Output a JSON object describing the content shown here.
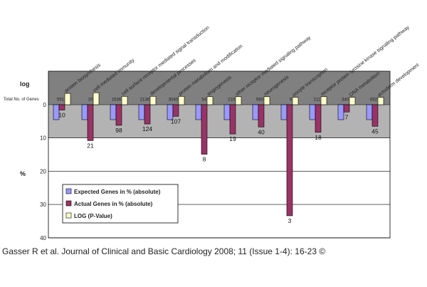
{
  "chart_data": {
    "type": "bar",
    "title": "",
    "ylabel": "%",
    "log_label": "log",
    "total_label": "Total No. of Genes",
    "yticks": [
      0,
      10,
      20,
      30,
      40
    ],
    "ylim": [
      -10,
      40
    ],
    "categories": [
      "protein biosynthesis",
      "cell mediated immunity",
      "cell surface receptor mediated signal transduction",
      "developmental processes",
      "protein metabolism and modification",
      "angiogenesis",
      "other receptor mediated signaling pathway",
      "neurogenesis",
      "oocyte transcription",
      "receptor protein tyrosine kinase signaling pathway",
      "DNA metabolism",
      "ectoderm development"
    ],
    "totals": [
      "591",
      "19",
      "1636",
      "2136",
      "3040",
      "54",
      "210",
      "560",
      "9",
      "211",
      "340",
      "692"
    ],
    "series": [
      {
        "name": "Expected Genes in % (absolute)",
        "color": "#9999ff",
        "values": [
          4.5,
          4.5,
          4.5,
          4.5,
          4.5,
          4.5,
          4.5,
          4.5,
          4.5,
          4.5,
          4.5,
          4.5
        ]
      },
      {
        "name": "Actual Genes in % (absolute)",
        "color": "#993366",
        "values": [
          1.6,
          10.8,
          6.2,
          5.8,
          3.5,
          14.9,
          8.8,
          6.7,
          33.4,
          8.3,
          2.2,
          6.5
        ],
        "labels": [
          "10",
          "21",
          "98",
          "124",
          "107",
          "8",
          "19",
          "40",
          "3",
          "18",
          "7",
          "45"
        ]
      },
      {
        "name": "LOG (P-Value)",
        "color": "#ffffcc",
        "values": [
          -3.4,
          -3.6,
          -2.5,
          -2.5,
          -2.5,
          -2.4,
          -2.4,
          -2.4,
          -2.2,
          -2.4,
          -2.2,
          -2.2
        ]
      }
    ],
    "legend": "bottom-left",
    "grid": true
  },
  "citation": "Gasser R et al. Journal of Clinical and Basic Cardiology 2008; 11 (Issue 1-4): 16-23 ©"
}
